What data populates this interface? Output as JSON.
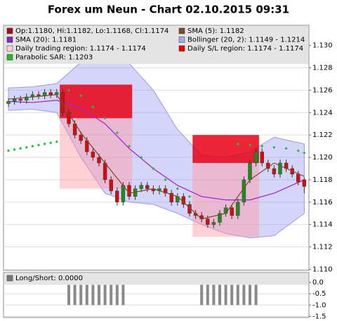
{
  "chart_data": [
    {
      "type": "candlestick",
      "title": "Forex um Neun - Chart 02.10.2015 09:31",
      "open": [
        1.1248,
        1.125,
        1.1252,
        1.1251,
        1.1254,
        1.1256,
        1.1255,
        1.1258,
        1.1256,
        1.1258,
        1.124,
        1.123,
        1.122,
        1.1215,
        1.1205,
        1.12,
        1.1195,
        1.118,
        1.117,
        1.116,
        1.1175,
        1.1165,
        1.1172,
        1.1175,
        1.1172,
        1.117,
        1.1172,
        1.1168,
        1.116,
        1.1165,
        1.1158,
        1.115,
        1.1148,
        1.1145,
        1.114,
        1.1142,
        1.115,
        1.1155,
        1.1148,
        1.116,
        1.118,
        1.1195,
        1.1205,
        1.1195,
        1.119,
        1.1185,
        1.1195,
        1.119,
        1.1185,
        1.118
      ],
      "high": [
        1.1253,
        1.1255,
        1.1255,
        1.1257,
        1.1259,
        1.1259,
        1.1261,
        1.1261,
        1.1261,
        1.1261,
        1.1243,
        1.1233,
        1.1223,
        1.1218,
        1.1208,
        1.1203,
        1.1198,
        1.1183,
        1.1173,
        1.1178,
        1.1178,
        1.1175,
        1.1178,
        1.1178,
        1.1175,
        1.1175,
        1.1175,
        1.1171,
        1.1168,
        1.1168,
        1.1161,
        1.1153,
        1.1151,
        1.1148,
        1.1145,
        1.1153,
        1.1158,
        1.1158,
        1.1163,
        1.1183,
        1.1198,
        1.1208,
        1.1208,
        1.1198,
        1.1193,
        1.1198,
        1.1198,
        1.1193,
        1.1188,
        1.1182
      ],
      "low": [
        1.1245,
        1.1247,
        1.1248,
        1.1248,
        1.1251,
        1.1252,
        1.1252,
        1.1253,
        1.1253,
        1.1237,
        1.1227,
        1.1217,
        1.1212,
        1.1202,
        1.1197,
        1.1192,
        1.1177,
        1.1167,
        1.1157,
        1.1157,
        1.1162,
        1.1162,
        1.1169,
        1.1169,
        1.1167,
        1.1167,
        1.1165,
        1.1157,
        1.1157,
        1.1155,
        1.1147,
        1.1145,
        1.1142,
        1.1137,
        1.1137,
        1.1139,
        1.1147,
        1.1145,
        1.1145,
        1.1157,
        1.1177,
        1.1192,
        1.1192,
        1.1187,
        1.1182,
        1.1182,
        1.1187,
        1.1182,
        1.1175,
        1.1168
      ],
      "close": [
        1.125,
        1.1252,
        1.1251,
        1.1254,
        1.1256,
        1.1255,
        1.1258,
        1.1256,
        1.1258,
        1.124,
        1.123,
        1.122,
        1.1215,
        1.1205,
        1.12,
        1.1195,
        1.118,
        1.117,
        1.116,
        1.1175,
        1.1165,
        1.1172,
        1.1175,
        1.1172,
        1.117,
        1.1172,
        1.1168,
        1.116,
        1.1165,
        1.1158,
        1.115,
        1.1148,
        1.1145,
        1.114,
        1.1142,
        1.115,
        1.1155,
        1.1148,
        1.116,
        1.118,
        1.1195,
        1.1205,
        1.1195,
        1.119,
        1.1185,
        1.1195,
        1.119,
        1.1185,
        1.1178,
        1.1174
      ],
      "up_color": "#1f8a1f",
      "down_color": "#cc1010",
      "overlay_x": [
        0,
        4,
        8,
        12,
        16,
        20,
        24,
        28,
        32,
        36,
        40,
        44,
        49
      ],
      "bollinger_upper": [
        1.1262,
        1.1263,
        1.1266,
        1.1285,
        1.1286,
        1.1284,
        1.126,
        1.1225,
        1.1202,
        1.12,
        1.1205,
        1.1218,
        1.1212
      ],
      "bollinger_lower": [
        1.1242,
        1.1243,
        1.124,
        1.12,
        1.1168,
        1.116,
        1.1158,
        1.115,
        1.114,
        1.1132,
        1.1128,
        1.113,
        1.115
      ],
      "sma20": [
        1.125,
        1.1249,
        1.1251,
        1.1244,
        1.123,
        1.1208,
        1.119,
        1.1175,
        1.1165,
        1.1162,
        1.1162,
        1.1168,
        1.118
      ],
      "sma5": [
        1.1252,
        1.1254,
        1.1256,
        1.1222,
        1.1195,
        1.1168,
        1.1172,
        1.1165,
        1.1145,
        1.115,
        1.118,
        1.1195,
        1.1183
      ],
      "sar_x": [
        0,
        1,
        2,
        3,
        4,
        5,
        6,
        7,
        8,
        10,
        12,
        14,
        16,
        18,
        20,
        22,
        24,
        26,
        28,
        30,
        38,
        40,
        42,
        44,
        46,
        48,
        49
      ],
      "sar": [
        1.1206,
        1.1207,
        1.1208,
        1.1209,
        1.121,
        1.1211,
        1.1212,
        1.1213,
        1.1214,
        1.126,
        1.1255,
        1.1245,
        1.1235,
        1.1222,
        1.121,
        1.12,
        1.119,
        1.118,
        1.1172,
        1.1165,
        1.1212,
        1.1211,
        1.121,
        1.1209,
        1.1208,
        1.1206,
        1.1204
      ],
      "regions": [
        {
          "x": [
            9,
            20
          ],
          "sl": [
            1.1235,
            1.1265
          ],
          "trade": [
            1.1172,
            1.1235
          ]
        },
        {
          "x": [
            31,
            41
          ],
          "sl": [
            1.1195,
            1.122
          ],
          "trade": [
            1.1129,
            1.1195
          ]
        }
      ],
      "legend": [
        {
          "label": "Op:1.1180, Hi:1.1182, Lo:1.1168, Cl:1.1174",
          "color": "#a01020"
        },
        {
          "label": "SMA (5): 1.1182",
          "color": "#7a4a2a"
        },
        {
          "label": "SMA (20): 1.1181",
          "color": "#7b2fbf"
        },
        {
          "label": "Bollinger (20, 2): 1.1149 - 1.1214",
          "color": "#a8a8f0"
        },
        {
          "label": "Daily trading region: 1.1174 - 1.1174",
          "color": "#ffd0d8"
        },
        {
          "label": "Daily S/L region: 1.1174 - 1.1174",
          "color": "#ee0000"
        },
        {
          "label": "Parabolic SAR: 1.1203",
          "color": "#22bb22"
        }
      ],
      "ylim": [
        1.1099,
        1.1318
      ],
      "yticks": [
        {
          "value": 1.11,
          "label": "1.110"
        },
        1.112,
        1.114,
        1.116,
        1.118,
        {
          "value": 1.12,
          "label": "1.120"
        },
        1.122,
        1.124,
        1.126,
        1.128,
        {
          "value": 1.13,
          "label": "1.130"
        }
      ],
      "grid": true
    },
    {
      "type": "bar",
      "legend": [
        {
          "label": "Long/Short: 0.0000",
          "color": "#777777"
        }
      ],
      "values": [
        0,
        0,
        0,
        0,
        0,
        0,
        0,
        0,
        0,
        0,
        -1,
        -1,
        -1,
        -1,
        -1,
        -1,
        -1,
        -1,
        -1,
        -1,
        0,
        0,
        0,
        0,
        0,
        0,
        0,
        0,
        0,
        0,
        0,
        0,
        -1,
        -1,
        -1,
        -1,
        -1,
        -1,
        -1,
        -1,
        -1,
        -1,
        0,
        0,
        0,
        0,
        0,
        0,
        0,
        0
      ],
      "color": "#8a8a8a",
      "ylim": [
        -1.55,
        0.44
      ],
      "yticks": [
        {
          "value": 0,
          "label": "0.0"
        },
        -0.5,
        {
          "value": -1,
          "label": "-1.0"
        },
        -1.5
      ],
      "grid": true
    }
  ]
}
